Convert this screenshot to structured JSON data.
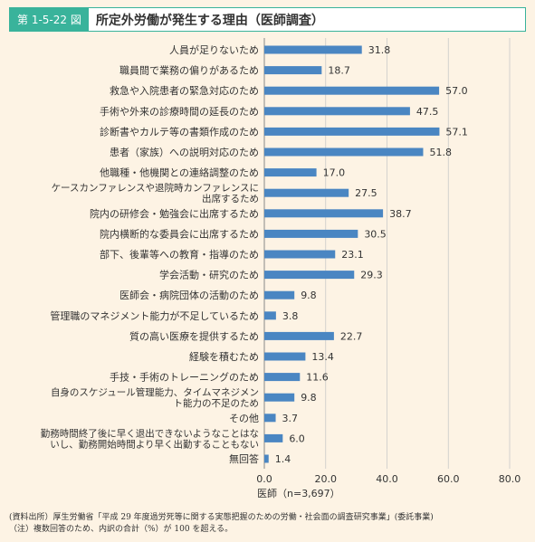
{
  "figure": {
    "label": "第 1-5-22 図",
    "title": "所定外労働が発生する理由（医師調査）"
  },
  "chart_data": {
    "type": "bar",
    "orientation": "horizontal",
    "categories": [
      "人員が足りないため",
      "職員間で業務の偏りがあるため",
      "救急や入院患者の緊急対応のため",
      "手術や外来の診療時間の延長のため",
      "診断書やカルテ等の書類作成のため",
      "患者（家族）への説明対応のため",
      "他職種・他機関との連絡調整のため",
      "ケースカンファレンスや退院時カンファレンスに出席するため",
      "院内の研修会・勉強会に出席するため",
      "院内横断的な委員会に出席するため",
      "部下、後輩等への教育・指導のため",
      "学会活動・研究のため",
      "医師会・病院団体の活動のため",
      "管理職のマネジメント能力が不足しているため",
      "質の高い医療を提供するため",
      "経験を積むため",
      "手技・手術のトレーニングのため",
      "自身のスケジュール管理能力、タイムマネジメント能力の不足のため",
      "その他",
      "勤務時間終了後に早く退出できないようなことはないし、勤務開始時間より早く出勤することもない",
      "無回答"
    ],
    "category_lines": [
      [
        "人員が足りないため"
      ],
      [
        "職員間で業務の偏りがあるため"
      ],
      [
        "救急や入院患者の緊急対応のため"
      ],
      [
        "手術や外来の診療時間の延長のため"
      ],
      [
        "診断書やカルテ等の書類作成のため"
      ],
      [
        "患者（家族）への説明対応のため"
      ],
      [
        "他職種・他機関との連絡調整のため"
      ],
      [
        "ケースカンファレンスや退院時カンファレンスに",
        "出席するため"
      ],
      [
        "院内の研修会・勉強会に出席するため"
      ],
      [
        "院内横断的な委員会に出席するため"
      ],
      [
        "部下、後輩等への教育・指導のため"
      ],
      [
        "学会活動・研究のため"
      ],
      [
        "医師会・病院団体の活動のため"
      ],
      [
        "管理職のマネジメント能力が不足しているため"
      ],
      [
        "質の高い医療を提供するため"
      ],
      [
        "経験を積むため"
      ],
      [
        "手技・手術のトレーニングのため"
      ],
      [
        "自身のスケジュール管理能力、タイムマネジメン",
        "ト能力の不足のため"
      ],
      [
        "その他"
      ],
      [
        "勤務時間終了後に早く退出できないようなことはな",
        "いし、勤務開始時間より早く出勤することもない"
      ],
      [
        "無回答"
      ]
    ],
    "values": [
      31.8,
      18.7,
      57.0,
      47.5,
      57.1,
      51.8,
      17.0,
      27.5,
      38.7,
      30.5,
      23.1,
      29.3,
      9.8,
      3.8,
      22.7,
      13.4,
      11.6,
      9.8,
      3.7,
      6.0,
      1.4
    ],
    "value_labels": [
      "31.8",
      "18.7",
      "57.0",
      "47.5",
      "57.1",
      "51.8",
      "17.0",
      "27.5",
      "38.7",
      "30.5",
      "23.1",
      "29.3",
      "9.8",
      "3.8",
      "22.7",
      "13.4",
      "11.6",
      "9.8",
      "3.7",
      "6.0",
      "1.4"
    ],
    "xlim": [
      0,
      80
    ],
    "xticks": [
      "0.0",
      "20.0",
      "40.0",
      "60.0",
      "80.0"
    ],
    "xlabel": "医師（n=3,697）",
    "grid": true,
    "bar_color": "#4a86c2"
  },
  "notes": [
    "(資料出所）厚生労働省「平成 29 年度過労死等に関する実態把握のための労働・社会面の調査研究事業」(委託事業)",
    "（注）複数回答のため、内訳の合計（%）が 100 を超える。"
  ]
}
